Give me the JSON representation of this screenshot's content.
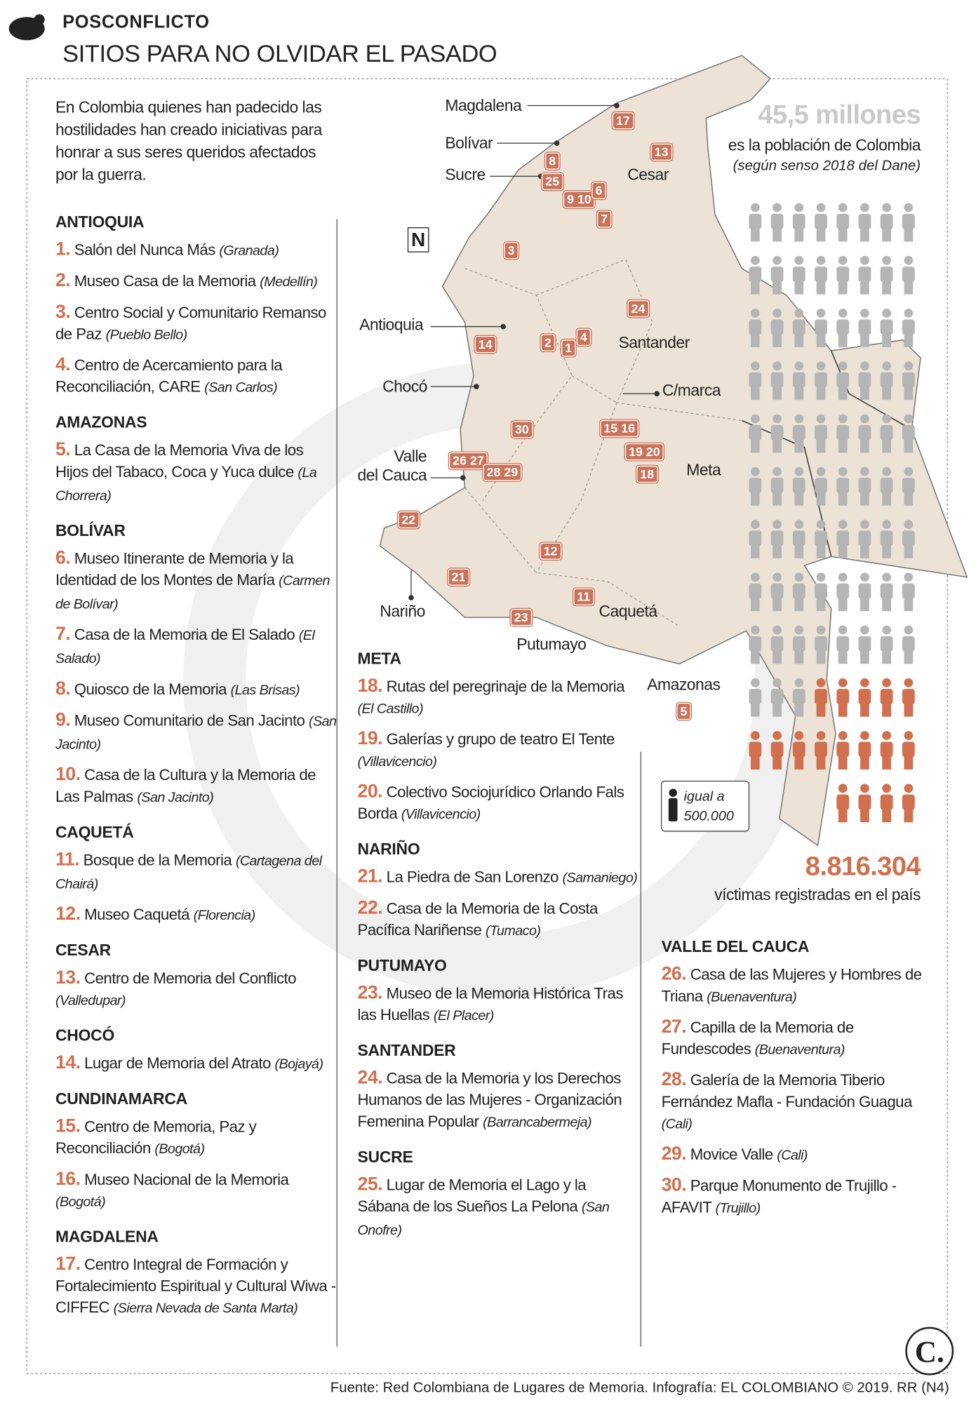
{
  "header": {
    "kicker": "POSCONFLICTO",
    "title": "SITIOS PARA NO OLVIDAR EL PASADO"
  },
  "intro": "En Colombia quienes han padecido las hostilidades han creado iniciativas para honrar a sus seres queridos afectados por la guerra.",
  "regions": [
    {
      "name": "ANTIOQUIA",
      "items": [
        {
          "number": "1.",
          "name": "Salón del Nunca Más",
          "place": "(Granada)"
        },
        {
          "number": "2.",
          "name": "Museo Casa de la Memoria",
          "place": "(Medellín)"
        },
        {
          "number": "3.",
          "name": "Centro Social y Comunitario Remanso de Paz",
          "place": "(Pueblo Bello)"
        },
        {
          "number": "4.",
          "name": "Centro de Acercamiento para la Reconciliación, CARE",
          "place": "(San Carlos)"
        }
      ]
    },
    {
      "name": "AMAZONAS",
      "items": [
        {
          "number": "5.",
          "name": "La Casa de la Memoria Viva de los Hijos del Tabaco, Coca y Yuca dulce",
          "place": "(La Chorrera)"
        }
      ]
    },
    {
      "name": "BOLÍVAR",
      "items": [
        {
          "number": "6.",
          "name": "Museo Itinerante de Memoria y la Identidad de los Montes de María",
          "place": "(Carmen de Bolívar)"
        },
        {
          "number": "7.",
          "name": "Casa de la Memoria de El Salado",
          "place": "(El Salado)"
        },
        {
          "number": "8.",
          "name": "Quiosco de la Memoria",
          "place": "(Las Brisas)"
        },
        {
          "number": "9.",
          "name": "Museo Comunitario de San Jacinto",
          "place": "(San Jacinto)"
        },
        {
          "number": "10.",
          "name": "Casa de la Cultura y la Memoria de Las Palmas",
          "place": "(San Jacinto)"
        }
      ]
    },
    {
      "name": "CAQUETÁ",
      "items": [
        {
          "number": "11.",
          "name": "Bosque de la Memoria",
          "place": "(Cartagena del Chairá)"
        },
        {
          "number": "12.",
          "name": "Museo Caquetá",
          "place": "(Florencia)"
        }
      ]
    },
    {
      "name": "CESAR",
      "items": [
        {
          "number": "13.",
          "name": "Centro de Memoria del Conflicto",
          "place": "(Valledupar)"
        }
      ]
    },
    {
      "name": "CHOCÓ",
      "items": [
        {
          "number": "14.",
          "name": "Lugar de Memoria del Atrato",
          "place": "(Bojayá)"
        }
      ]
    },
    {
      "name": "CUNDINAMARCA",
      "items": [
        {
          "number": "15.",
          "name": "Centro de Memoria, Paz y Reconciliación",
          "place": "(Bogotá)"
        },
        {
          "number": "16.",
          "name": "Museo Nacional de la Memoria",
          "place": "(Bogotá)"
        }
      ]
    },
    {
      "name": "MAGDALENA",
      "items": [
        {
          "number": "17.",
          "name": "Centro Integral de Formación y Fortalecimiento Espiritual y Cultural Wiwa - CIFFEC",
          "place": "(Sierra Nevada de Santa Marta)"
        }
      ]
    },
    {
      "name": "META",
      "items": [
        {
          "number": "18.",
          "name": "Rutas del peregrinaje de la Memoria",
          "place": "(El Castillo)"
        },
        {
          "number": "19.",
          "name": "Galerías y grupo de teatro El Tente",
          "place": "(Villavicencio)"
        },
        {
          "number": "20.",
          "name": "Colectivo Sociojurídico Orlando Fals Borda",
          "place": "(Villavicencio)"
        }
      ]
    },
    {
      "name": "NARIÑO",
      "items": [
        {
          "number": "21.",
          "name": "La Piedra de San Lorenzo",
          "place": "(Samaniego)"
        },
        {
          "number": "22.",
          "name": "Casa de la Memoria de la Costa Pacífica Nariñense",
          "place": "(Tumaco)"
        }
      ]
    },
    {
      "name": "PUTUMAYO",
      "items": [
        {
          "number": "23.",
          "name": "Museo de la Memoria Histórica Tras las Huellas",
          "place": "(El Placer)"
        }
      ]
    },
    {
      "name": "SANTANDER",
      "items": [
        {
          "number": "24.",
          "name": "Casa de la Memoria y los Derechos Humanos de las Mujeres - Organización Femenina Popular",
          "place": "(Barrancabermeja)"
        }
      ]
    },
    {
      "name": "SUCRE",
      "items": [
        {
          "number": "25.",
          "name": "Lugar de Memoria el Lago y la Sábana de los Sueños La Pelona",
          "place": "(San Onofre)"
        }
      ]
    },
    {
      "name": "VALLE DEL CAUCA",
      "items": [
        {
          "number": "26.",
          "name": "Casa de las Mujeres y Hombres de Triana",
          "place": "(Buenaventura)"
        },
        {
          "number": "27.",
          "name": "Capilla de la Memoria de Fundescodes",
          "place": "(Buenaventura)"
        },
        {
          "number": "28.",
          "name": "Galería de la Memoria Tiberio Fernández Mafla - Fundación Guagua",
          "place": "(Cali)"
        },
        {
          "number": "29.",
          "name": "Movice Valle",
          "place": "(Cali)"
        },
        {
          "number": "30.",
          "name": "Parque Monumento de Trujillo - AFAVIT",
          "place": "(Trujillo)"
        }
      ]
    }
  ],
  "map": {
    "north": "N",
    "departments": [
      [
        "Magdalena"
      ],
      [
        "Bolívar"
      ],
      [
        "Sucre"
      ],
      [
        "Cesar"
      ],
      [
        "Antioquia"
      ],
      [
        "Santander"
      ],
      [
        "Chocó"
      ],
      [
        "C/marca"
      ],
      [
        "Valle",
        "del Cauca"
      ],
      [
        "Meta"
      ],
      [
        "Nariño"
      ],
      [
        "Caquetá"
      ],
      [
        "Putumayo"
      ],
      [
        "Amazonas"
      ]
    ],
    "markers": [
      "17",
      "13",
      "8",
      "25",
      "9 10",
      "6",
      "7",
      "3",
      "24",
      "14",
      "2",
      "1",
      "4",
      "30",
      "15 16",
      "19 20",
      "18",
      "26 27",
      "28 29",
      "22",
      "12",
      "21",
      "11",
      "23",
      "5"
    ]
  },
  "stats": {
    "population": "45,5 millones",
    "population_text": "es la población de Colombia",
    "population_note": "(según senso 2018 del Dane)",
    "legend": "igual a 500.000",
    "victims": "8.816.304",
    "victims_text": "víctimas registradas en el país"
  },
  "footer": "Fuente: Red Colombiana de Lugares de Memoria. Infografía: EL COLOMBIANO © 2019. RR (N4)"
}
